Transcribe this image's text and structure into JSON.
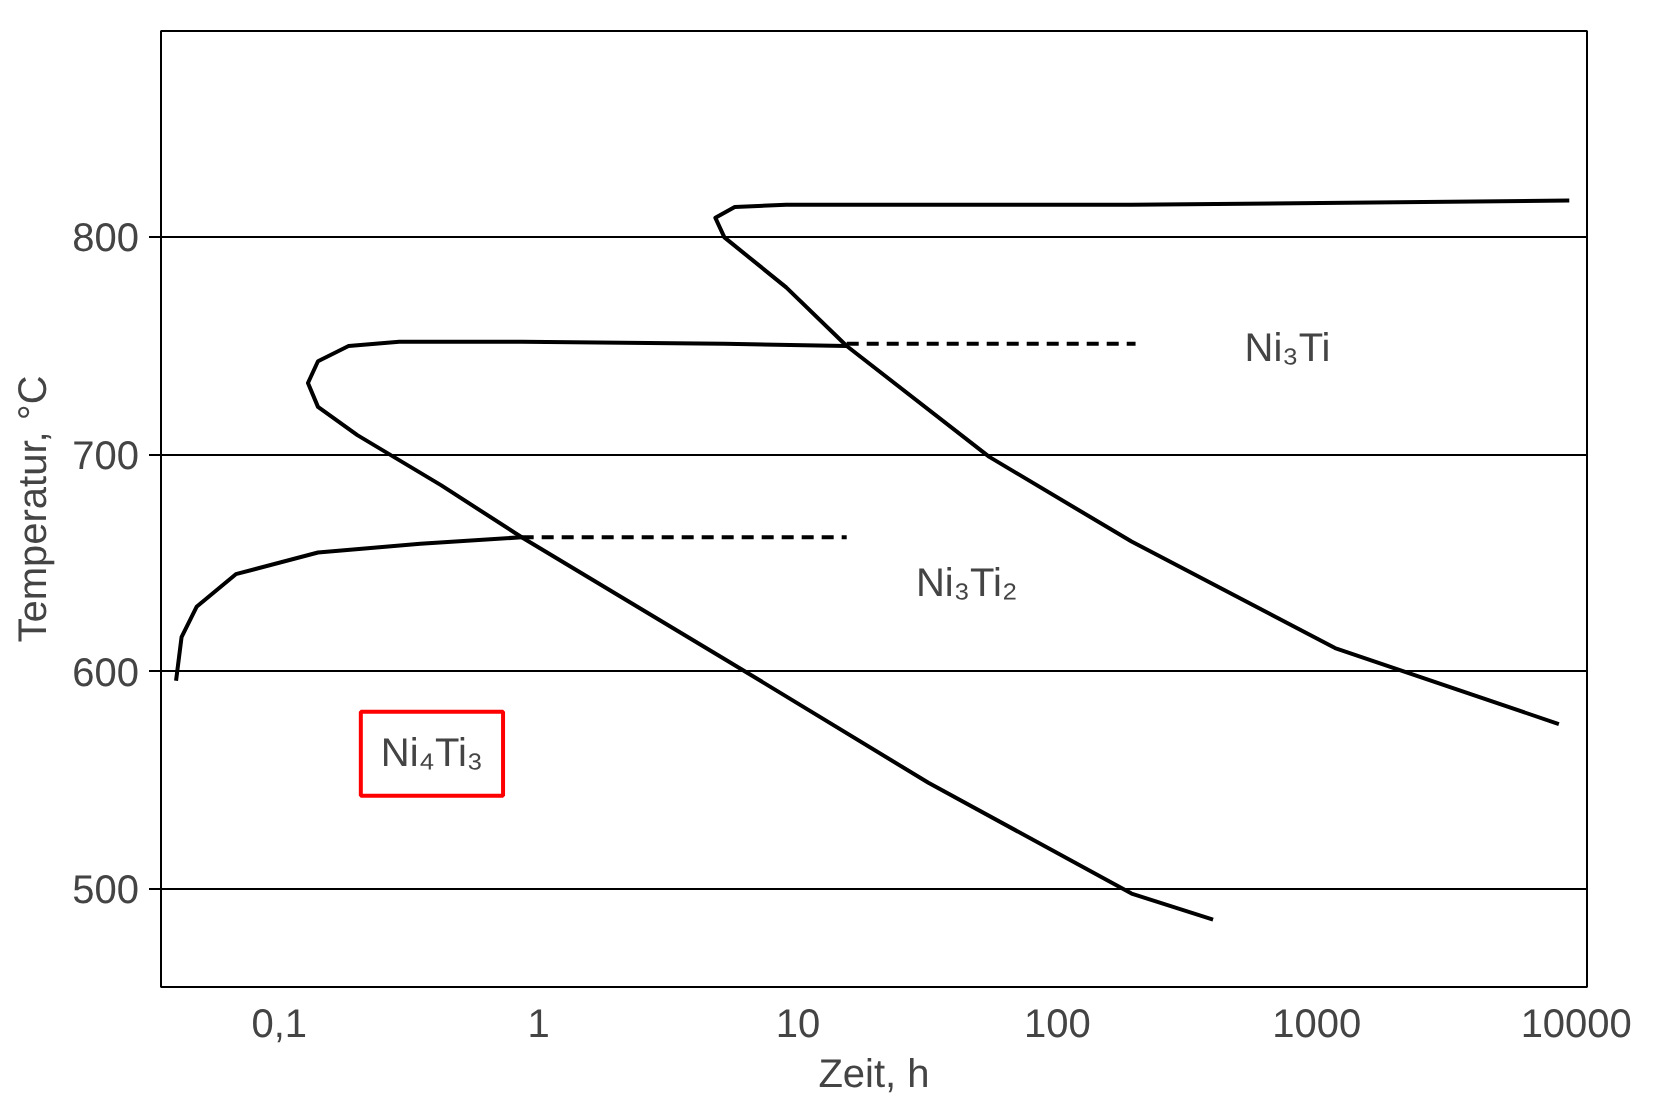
{
  "chart_data": {
    "type": "line",
    "xlabel": "Zeit, h",
    "ylabel": "Temperatur, °C",
    "log": "x",
    "grid": "y",
    "line_style": "solid",
    "marker": "none",
    "xlim": [
      0.035,
      11000
    ],
    "ylim": [
      455,
      895
    ],
    "xticks": [
      {
        "value": 0.1,
        "label": "0,1"
      },
      1,
      10,
      100,
      1000,
      10000
    ],
    "yticks": [
      500,
      600,
      700,
      800
    ],
    "series": [
      {
        "color": "#000000",
        "x": [
          0.04,
          0.042,
          0.048,
          0.068,
          0.141,
          0.35,
          0.86
        ],
        "values": [
          596,
          616,
          630,
          645,
          655,
          659,
          662
        ]
      },
      {
        "color": "#000000",
        "x": [
          15.4,
          5.2,
          0.86,
          0.29,
          0.185,
          0.141,
          0.129,
          0.141,
          0.2,
          0.42,
          0.86,
          5.2,
          31.8,
          193,
          398
        ],
        "values": [
          750,
          751,
          752,
          752,
          750,
          743,
          733,
          722,
          709,
          686,
          662,
          606,
          549,
          498,
          486
        ]
      },
      {
        "color": "#000000",
        "x": [
          9400,
          193,
          9.0,
          5.7,
          4.8,
          5.2,
          9.0,
          15.4,
          54.6,
          193,
          1175,
          8570
        ],
        "values": [
          817,
          815,
          815,
          814,
          809,
          800,
          777,
          750,
          699,
          660,
          611,
          576
        ]
      },
      {
        "color": "#000000",
        "line_style": "dashed",
        "x": [
          0.86,
          15.4
        ],
        "values": [
          662,
          662
        ]
      },
      {
        "color": "#000000",
        "line_style": "dashed",
        "x": [
          15.4,
          200
        ],
        "values": [
          751,
          751
        ]
      }
    ],
    "annotations": [
      "Ni₃Ti",
      "Ni₃Ti₂",
      "Ni₄Ti₃"
    ]
  }
}
